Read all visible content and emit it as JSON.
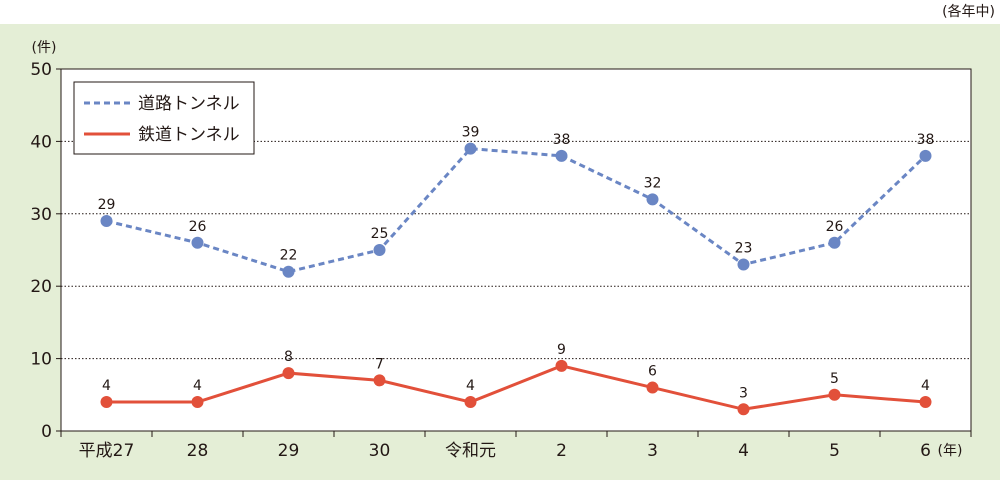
{
  "note": "(各年中)",
  "chart_data": {
    "type": "line",
    "y_unit": "(件)",
    "x_unit": "(年)",
    "categories": [
      "平成27",
      "28",
      "29",
      "30",
      "令和元",
      "2",
      "3",
      "4",
      "5",
      "6"
    ],
    "series": [
      {
        "name": "道路トンネル",
        "color": "#6a86c4",
        "style": "dashed",
        "values": [
          29,
          26,
          22,
          25,
          39,
          38,
          32,
          23,
          26,
          38
        ]
      },
      {
        "name": "鉄道トンネル",
        "color": "#e2503a",
        "style": "solid",
        "values": [
          4,
          4,
          8,
          7,
          4,
          9,
          6,
          3,
          5,
          4
        ]
      }
    ],
    "ylim": [
      0,
      50
    ],
    "yticks": [
      0,
      10,
      20,
      30,
      40,
      50
    ],
    "grid": true,
    "legend": "top-left",
    "colors": {
      "background": "#e4eed6",
      "plot": "#ffffff"
    }
  }
}
